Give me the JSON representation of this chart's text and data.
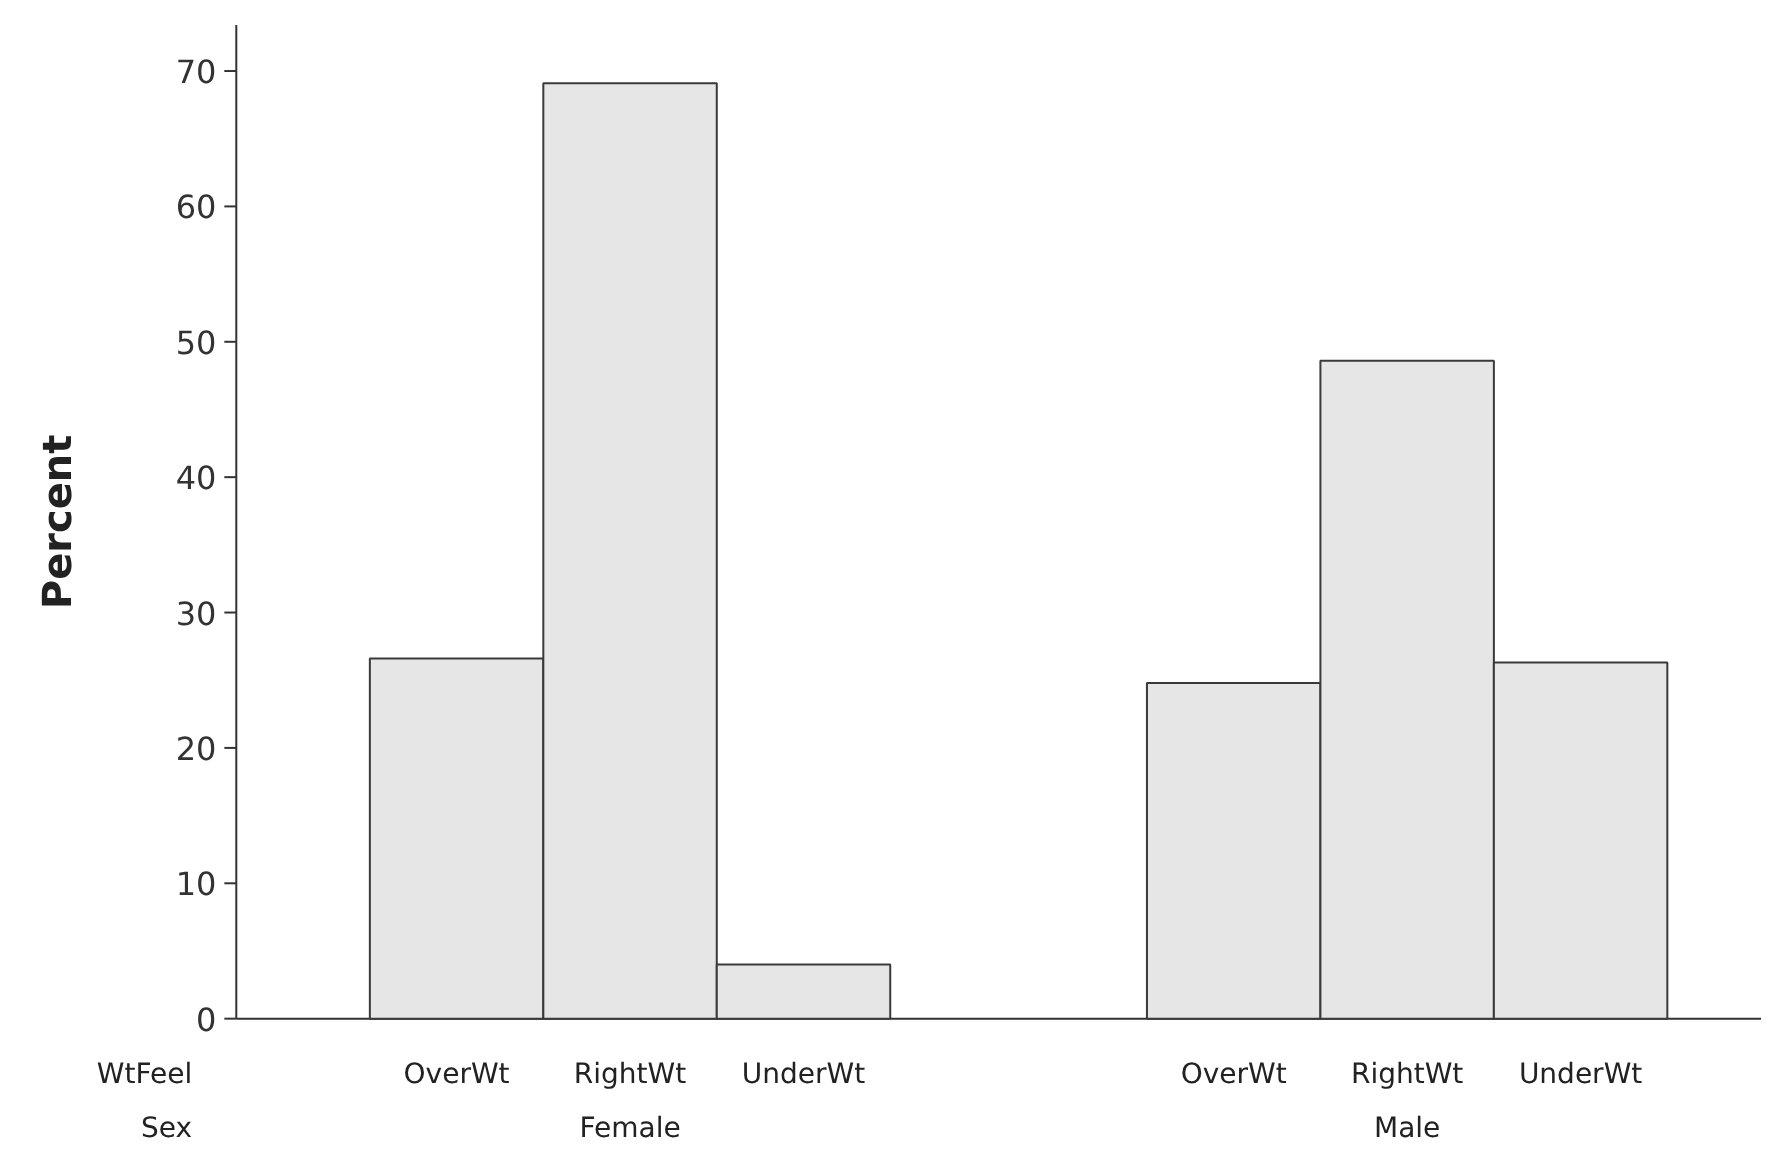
{
  "chart_data": {
    "type": "bar",
    "ylabel": "Percent",
    "xlabel": "WtFeel",
    "legend_title": "Sex",
    "categories": [
      "OverWt",
      "RightWt",
      "UnderWt",
      "OverWt",
      "RightWt",
      "UnderWt"
    ],
    "series": [
      {
        "color": "#e6e6e6",
        "values": [
          26.6,
          69.1,
          4.0,
          null,
          null,
          null
        ]
      },
      {
        "color": "#e6e6e6",
        "values": [
          null,
          null,
          null,
          24.8,
          48.6,
          26.3
        ]
      }
    ],
    "annotations": [
      "Female",
      "Male"
    ],
    "ylim": [
      0,
      73.4
    ],
    "yticks": [
      0,
      10,
      20,
      30,
      40,
      50,
      60,
      70
    ],
    "grid": false
  }
}
